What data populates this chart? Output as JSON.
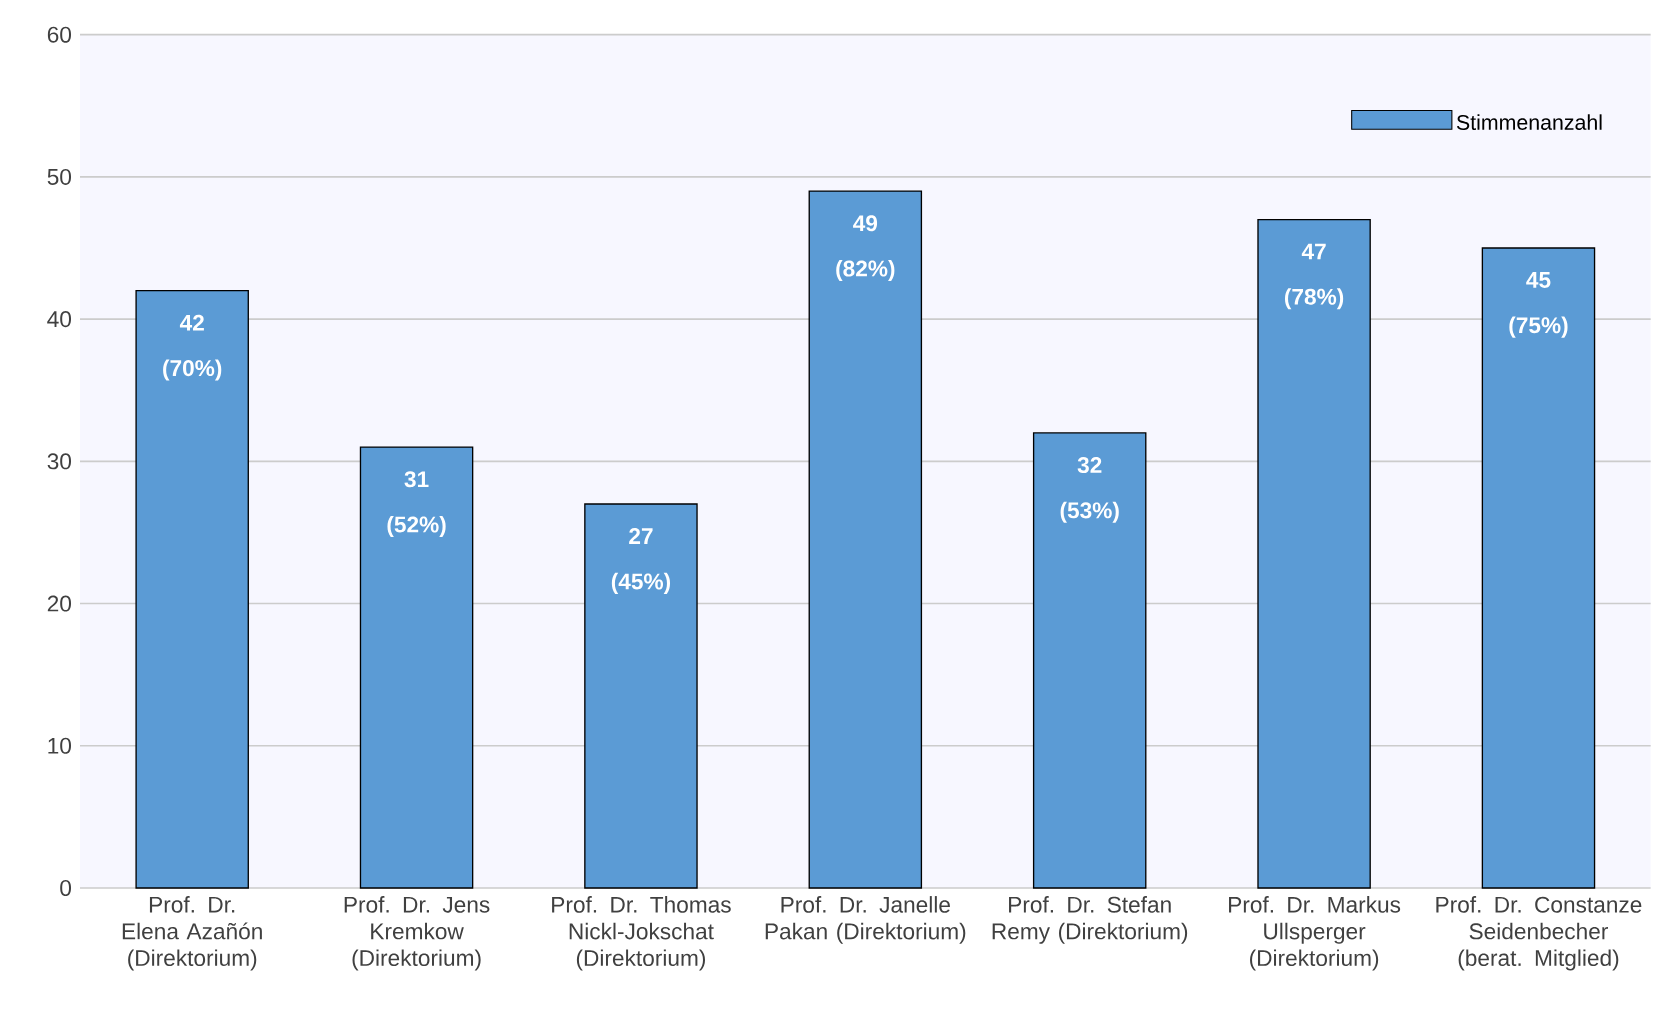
{
  "chart_data": {
    "type": "bar",
    "categories": [
      "Prof. Dr. Elena Azañón (Direktorium)",
      "Prof. Dr. Jens Kremkow (Direktorium)",
      "Prof. Dr. Thomas Nickl-Jokschat (Direktorium)",
      "Prof. Dr. Janelle Pakan (Direktorium)",
      "Prof. Dr. Stefan Remy (Direktorium)",
      "Prof. Dr. Markus Ullsperger (Direktorium)",
      "Prof. Dr. Constanze Seidenbecher (berat. Mitglied)"
    ],
    "series": [
      {
        "name": "Stimmenanzahl",
        "color": "#5b9bd5",
        "values": [
          42,
          31,
          27,
          49,
          32,
          47,
          45
        ],
        "value_labels": [
          "42 (70%)",
          "31 (52%)",
          "27 (45%)",
          "49 (82%)",
          "32 (53%)",
          "47 (78%)",
          "45 (75%)"
        ]
      }
    ],
    "ylim": [
      0,
      60
    ],
    "yticks": [
      0,
      10,
      20,
      30,
      40,
      50,
      60
    ],
    "grid": "y",
    "legend": "top right"
  }
}
